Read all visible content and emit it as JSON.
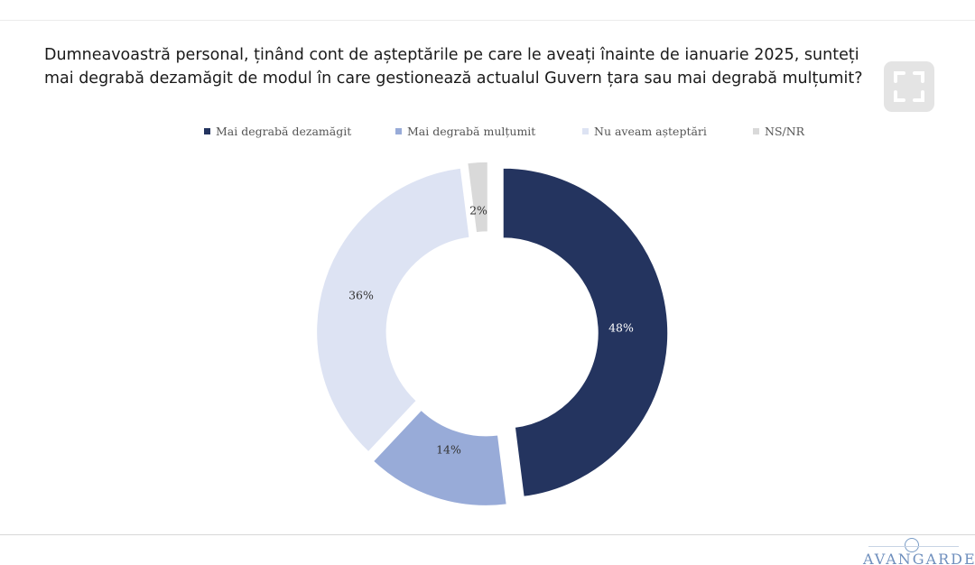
{
  "title": "Dumneavoastră personal, ținând cont de așteptările pe care le aveați înainte de ianuarie 2025, sunteți mai degrabă dezamăgit de modul în care gestionează actualul Guvern țara sau mai degrabă mulțumit?",
  "fullscreen_icon": "expand-icon",
  "logo_text": "AVANGARDE",
  "chart_data": {
    "type": "pie",
    "variant": "donut",
    "legend_position": "top",
    "categories": [
      "Mai degrabă dezamăgit",
      "Mai degrabă mulțumit",
      "Nu aveam așteptări",
      "NS/NR"
    ],
    "values": [
      48,
      14,
      36,
      2
    ],
    "data_labels": [
      "48%",
      "14%",
      "36%",
      "2%"
    ],
    "colors": [
      "#24345f",
      "#98abd8",
      "#dde3f3",
      "#d9d9d9"
    ],
    "label_colors": [
      "#ffffff",
      "#333333",
      "#333333",
      "#333333"
    ]
  }
}
